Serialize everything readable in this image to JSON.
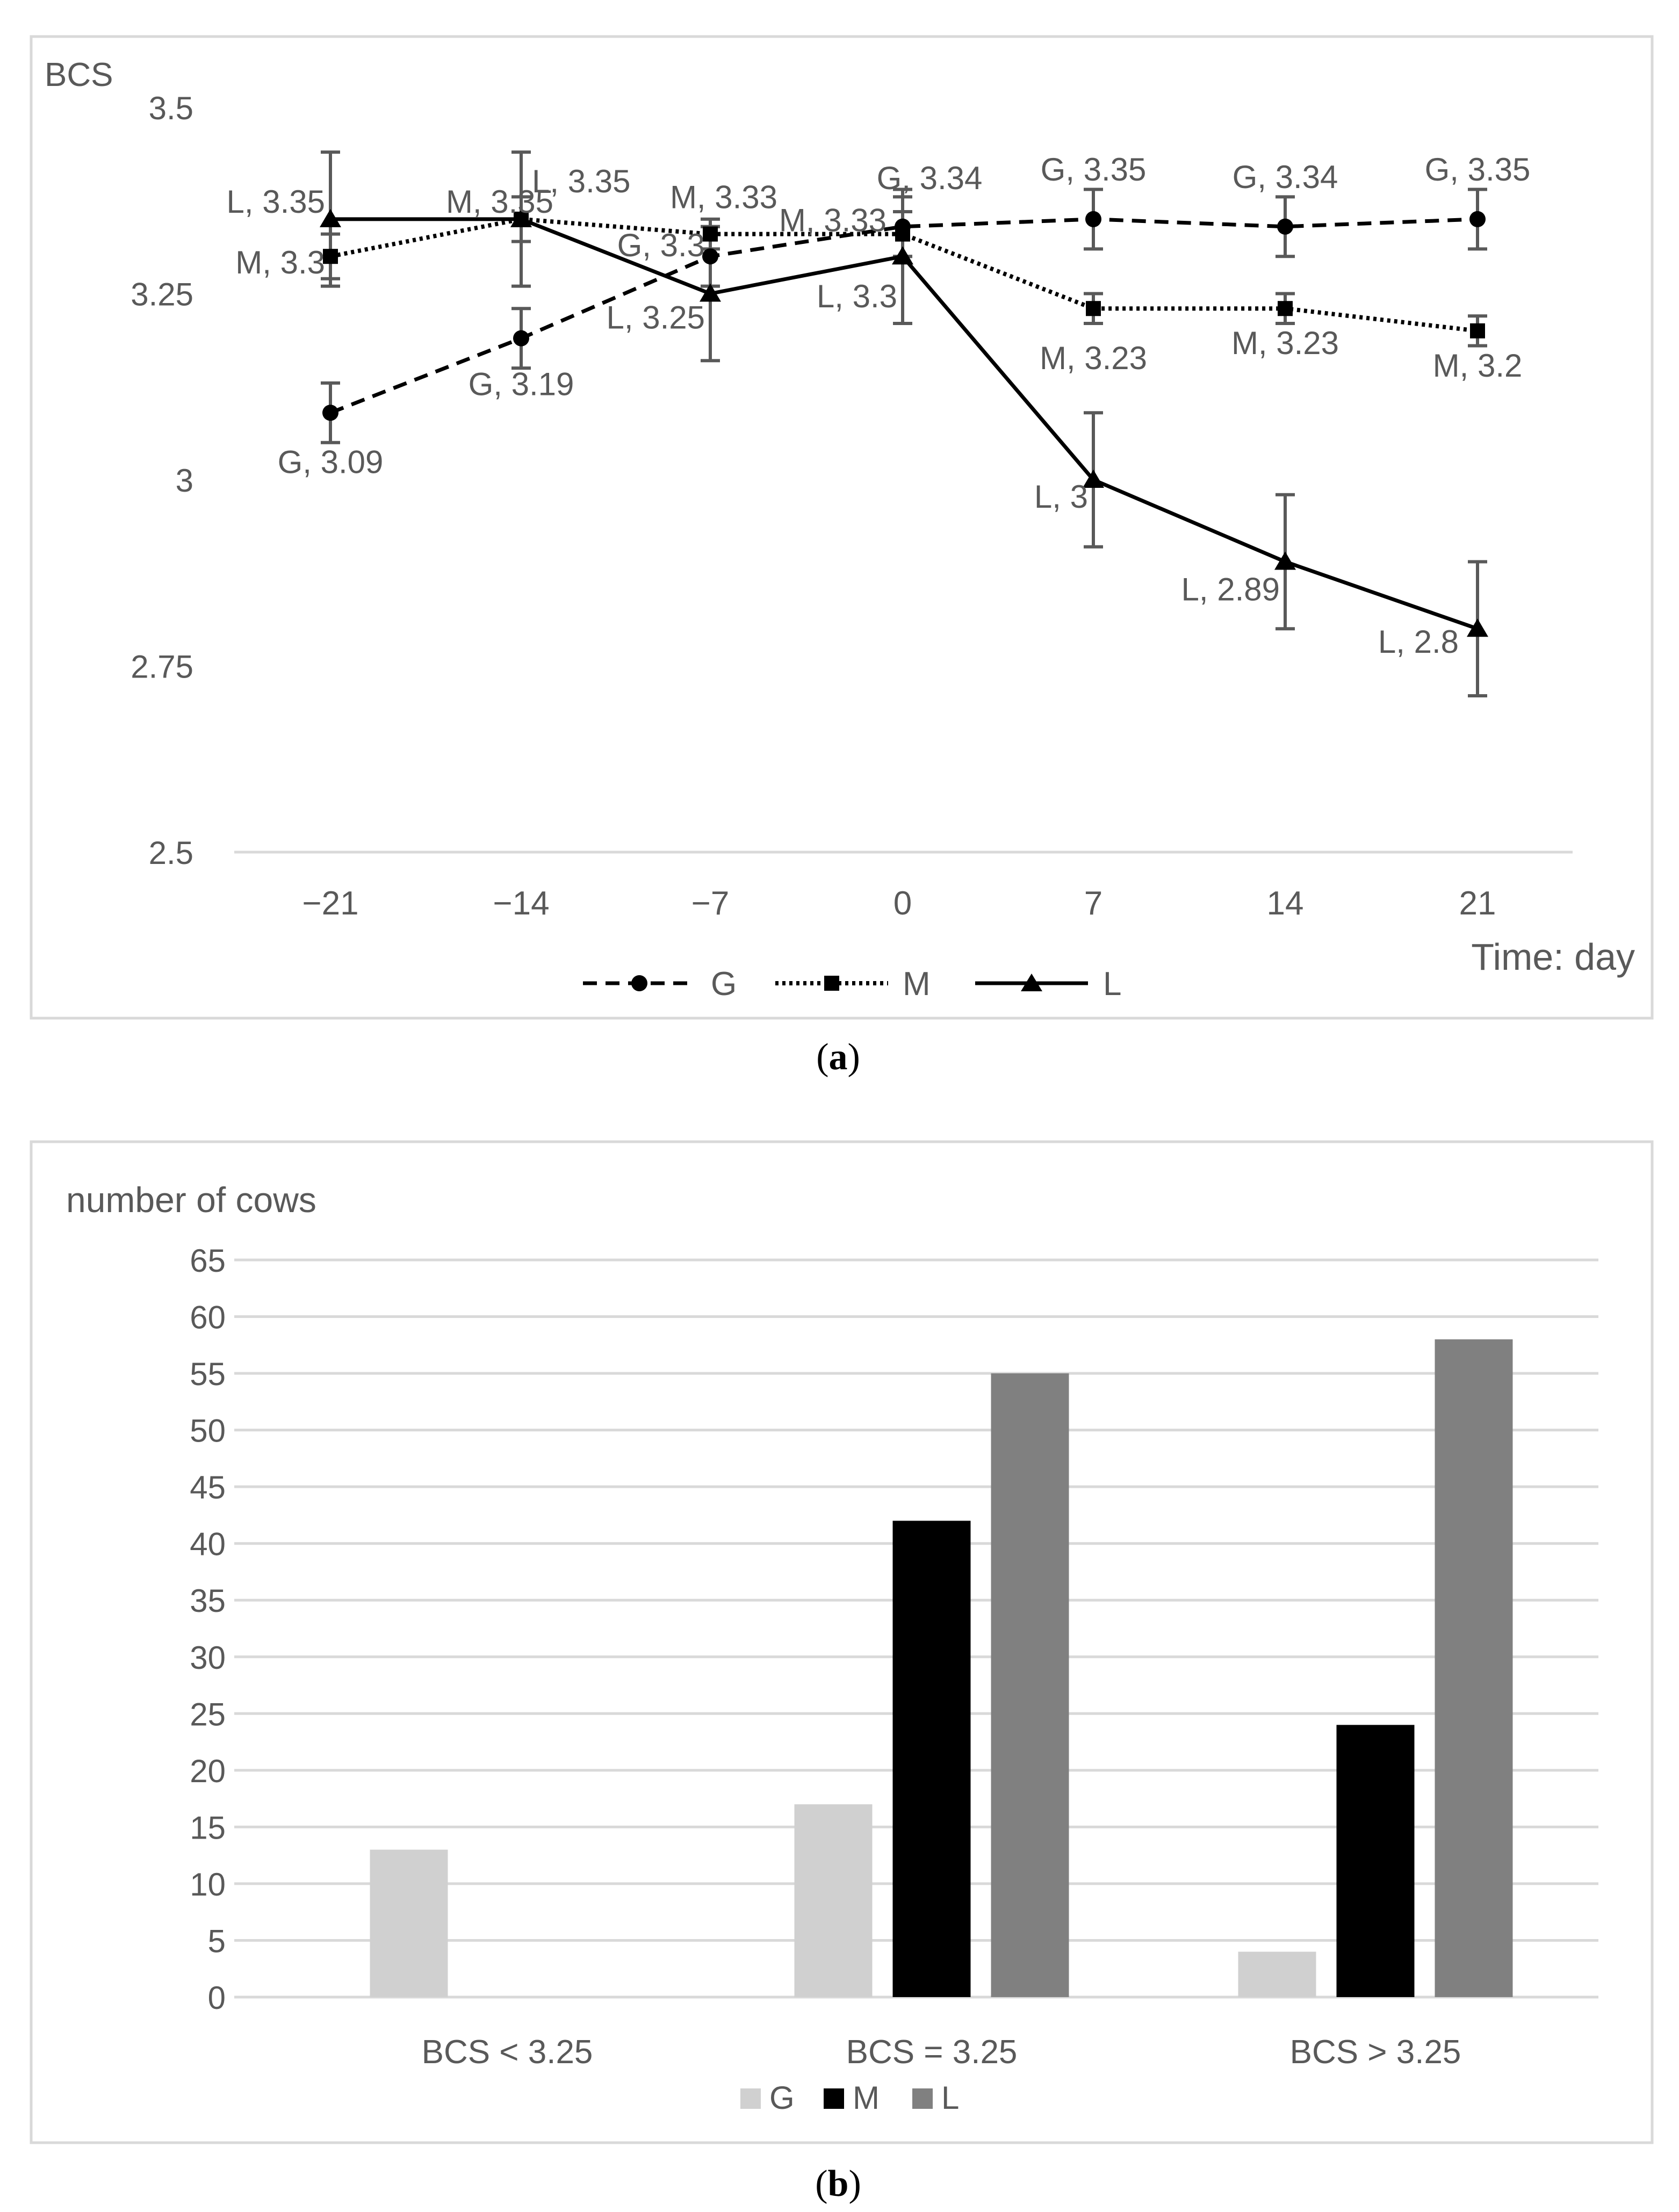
{
  "figure": {
    "panel_a_caption": {
      "open": "(",
      "letter": "a",
      "close": ")"
    },
    "panel_b_caption": {
      "open": "(",
      "letter": "b",
      "close": ")"
    }
  },
  "chart_data": [
    {
      "type": "line",
      "ylabel": "BCS",
      "xlabel": "Time: day",
      "ylim": [
        2.5,
        3.5
      ],
      "y_ticks": [
        "2.5",
        "2.75",
        "3",
        "3.25",
        "3.5"
      ],
      "categories": [
        "−21",
        "−14",
        "−7",
        "0",
        "7",
        "14",
        "21"
      ],
      "grid": "none",
      "legend": "bottom",
      "series": [
        {
          "name": "G",
          "style": "dashed",
          "marker": "circle",
          "values": [
            3.09,
            3.19,
            3.3,
            3.34,
            3.35,
            3.34,
            3.35
          ],
          "errors": [
            0.04,
            0.04,
            0.04,
            0.04,
            0.04,
            0.04,
            0.04
          ],
          "labels": [
            "G, 3.09",
            "G, 3.19",
            "G, 3.3",
            "G, 3.34",
            "G, 3.35",
            "G, 3.34",
            "G, 3.35"
          ]
        },
        {
          "name": "M",
          "style": "dotted",
          "marker": "square",
          "values": [
            3.3,
            3.35,
            3.33,
            3.33,
            3.23,
            3.23,
            3.2
          ],
          "errors": [
            0.03,
            0.03,
            0.02,
            0.03,
            0.02,
            0.02,
            0.02
          ],
          "labels": [
            "M, 3.3",
            "M, 3.35",
            "M, 3.33",
            "M, 3.33",
            "M, 3.23",
            "M, 3.23",
            "M, 3.2"
          ]
        },
        {
          "name": "L",
          "style": "solid",
          "marker": "triangle",
          "values": [
            3.35,
            3.35,
            3.25,
            3.3,
            3.0,
            2.89,
            2.8
          ],
          "errors": [
            0.09,
            0.09,
            0.09,
            0.09,
            0.09,
            0.09,
            0.09
          ],
          "labels": [
            "L, 3.35",
            "L, 3.35",
            "L, 3.25",
            "L, 3.3",
            "L, 3",
            "L, 2.89",
            "L, 2.8"
          ]
        }
      ]
    },
    {
      "type": "bar",
      "ylabel": "number of cows",
      "ylim": [
        0,
        65
      ],
      "y_ticks": [
        "0",
        "5",
        "10",
        "15",
        "20",
        "25",
        "30",
        "35",
        "40",
        "45",
        "50",
        "55",
        "60",
        "65"
      ],
      "categories": [
        "BCS < 3.25",
        "BCS = 3.25",
        "BCS > 3.25"
      ],
      "grid": "horizontal",
      "legend": "bottom",
      "series": [
        {
          "name": "G",
          "color": "#d0d0d0",
          "values": [
            13,
            17,
            4
          ]
        },
        {
          "name": "M",
          "color": "#000000",
          "values": [
            0,
            42,
            24
          ]
        },
        {
          "name": "L",
          "color": "#808080",
          "values": [
            0,
            55,
            58
          ]
        }
      ]
    }
  ]
}
